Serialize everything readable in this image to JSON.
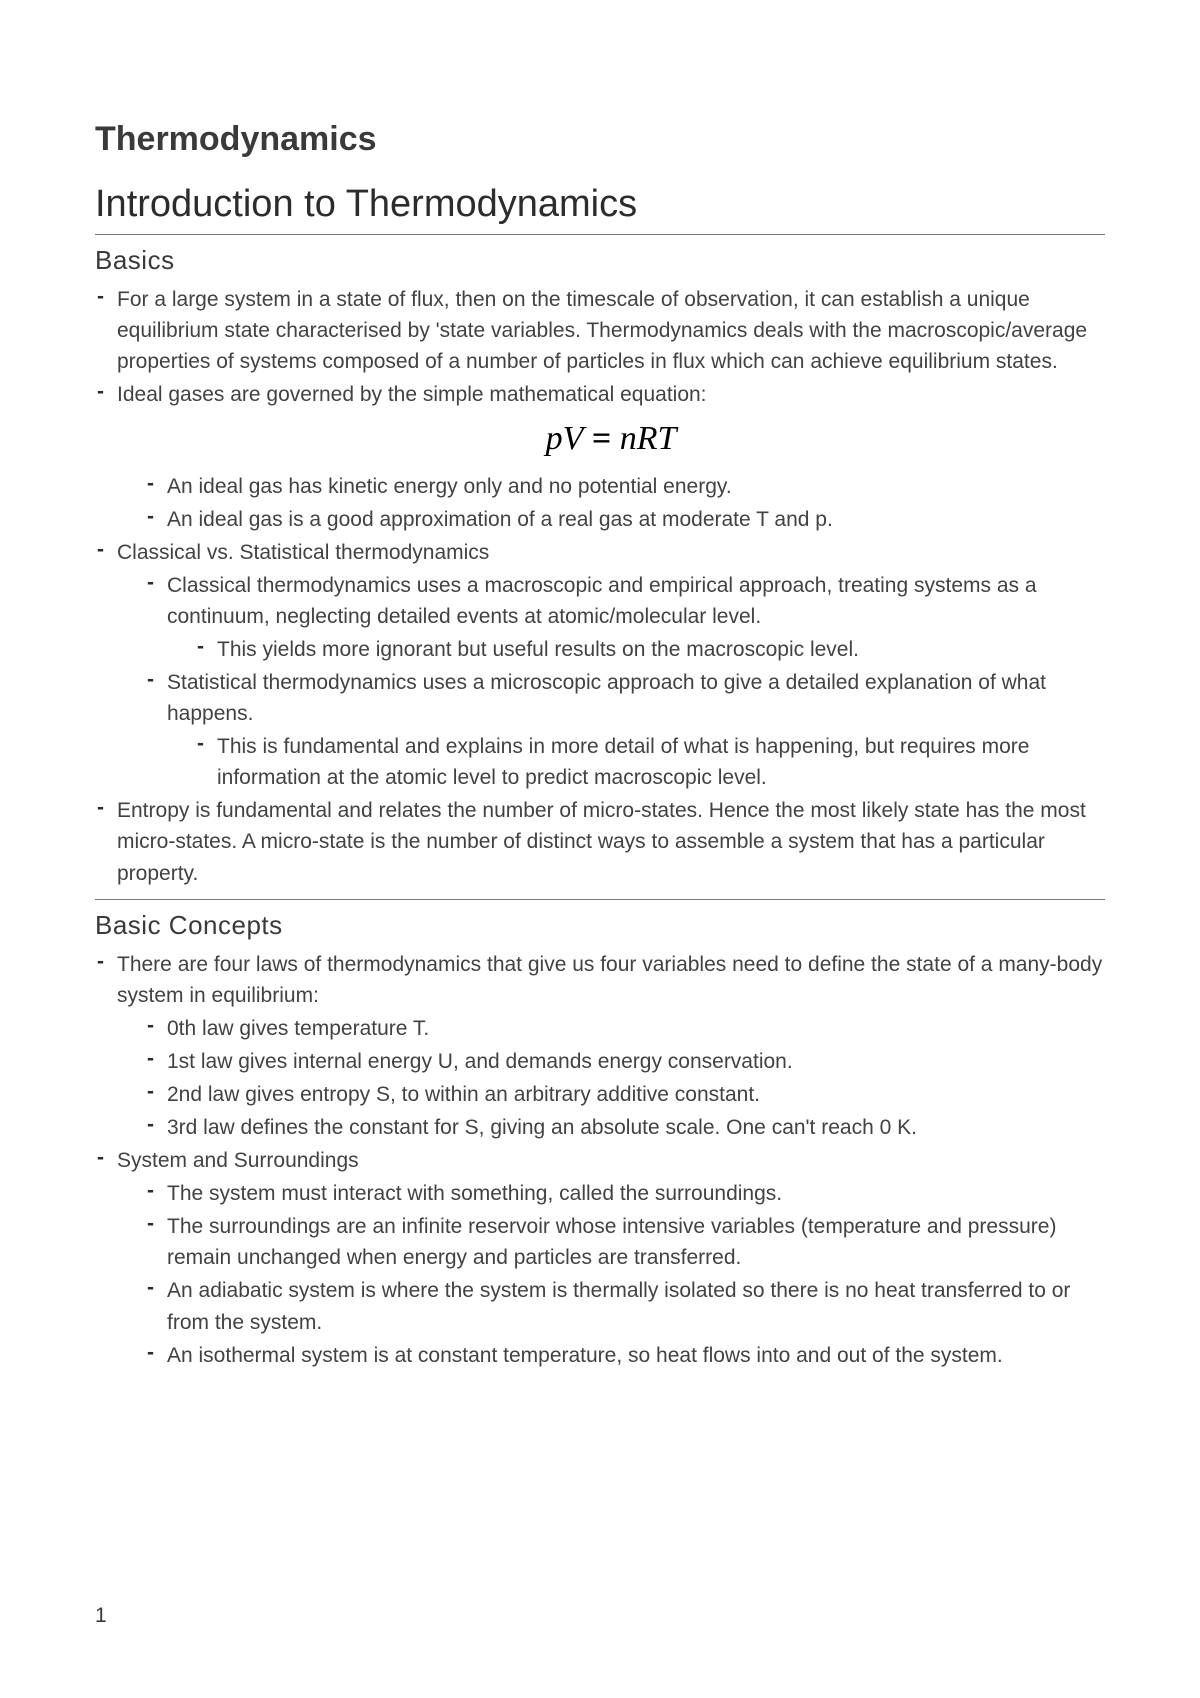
{
  "doc_title": "Thermodynamics",
  "section_heading": "Introduction to Thermodynamics",
  "subsection1": "Basics",
  "subsection2": "Basic Concepts",
  "equation_html": "<span class='it'>pV</span> = <span class='it'>nRT</span>",
  "basics": {
    "item1": "For a large system in a state of flux, then on the timescale of observation, it can establish a unique equilibrium state characterised by 'state variables. Thermodynamics deals with the macroscopic/average properties of systems composed of a number of particles in flux which can achieve equilibrium states.",
    "item2": "Ideal gases are governed by the simple mathematical equation:",
    "item2_sub1": "An ideal gas has kinetic energy only and no potential energy.",
    "item2_sub2": "An ideal gas is a good approximation of a real gas at moderate T and p.",
    "item3": "Classical vs. Statistical thermodynamics",
    "item3_sub1": "Classical thermodynamics uses a macroscopic and empirical approach, treating systems as a continuum, neglecting detailed events at atomic/molecular level.",
    "item3_sub1_sub1": "This yields more ignorant but useful results on the macroscopic level.",
    "item3_sub2": "Statistical thermodynamics uses a microscopic approach to give a detailed explanation of what happens.",
    "item3_sub2_sub1": "This is fundamental and explains in more detail of what is happening, but requires more information at the atomic level to predict macroscopic level.",
    "item4": "Entropy is fundamental and relates the number of micro-states. Hence the most likely state has the most micro-states. A micro-state is the number of distinct ways to assemble a system that has a particular property."
  },
  "concepts": {
    "item1": "There are four laws of thermodynamics that give us four variables need to define the state of a many-body system in equilibrium:",
    "item1_sub1": "0th law gives temperature T.",
    "item1_sub2": "1st law gives internal energy U, and demands energy conservation.",
    "item1_sub3": "2nd law gives entropy S, to within an arbitrary additive constant.",
    "item1_sub4": "3rd law defines the constant for S, giving an absolute scale. One can't reach 0 K.",
    "item2": "System and Surroundings",
    "item2_sub1": "The system must interact with something, called the surroundings.",
    "item2_sub2": "The surroundings are an infinite reservoir whose intensive variables (temperature and pressure) remain unchanged when energy and particles are transferred.",
    "item2_sub3": "An adiabatic system is where the system is thermally isolated so there is no heat transferred to or from the system.",
    "item2_sub4": "An isothermal system is at constant temperature, so heat flows into and out of the system."
  },
  "page_number": "1",
  "colors": {
    "background": "#ffffff",
    "heading_text": "#3a3a3a",
    "body_text": "#424242",
    "divider": "#7a7a7a",
    "equation": "#000000"
  },
  "typography": {
    "doc_title_fontsize": 34,
    "section_heading_fontsize": 38,
    "subsection_fontsize": 26,
    "body_fontsize": 21,
    "equation_fontsize": 34
  }
}
